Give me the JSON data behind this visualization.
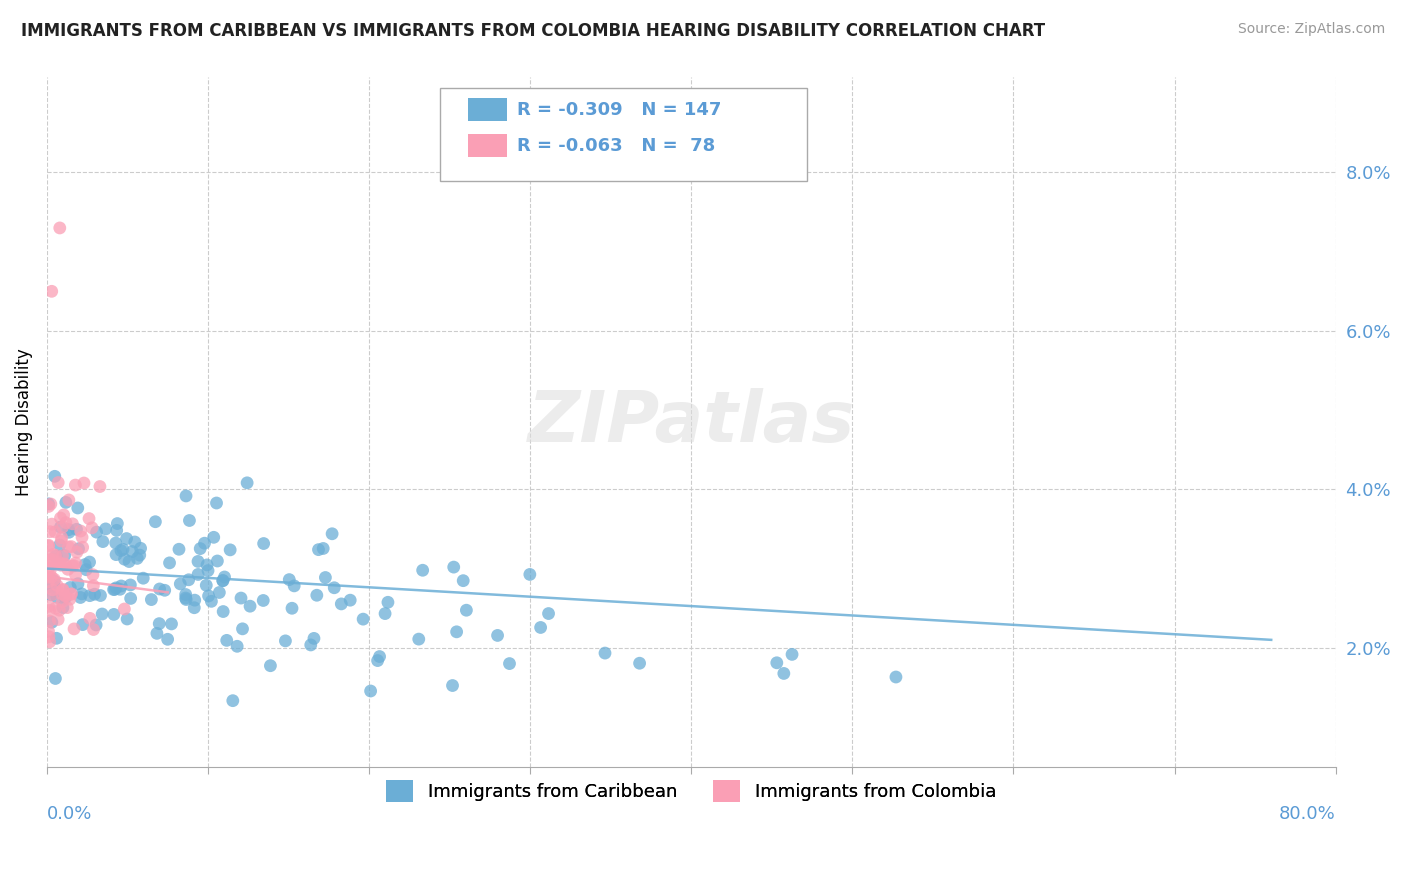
{
  "title": "IMMIGRANTS FROM CARIBBEAN VS IMMIGRANTS FROM COLOMBIA HEARING DISABILITY CORRELATION CHART",
  "source": "Source: ZipAtlas.com",
  "ylabel": "Hearing Disability",
  "y_ticks": [
    "2.0%",
    "4.0%",
    "6.0%",
    "8.0%"
  ],
  "y_tick_vals": [
    0.02,
    0.04,
    0.06,
    0.08
  ],
  "x_lim": [
    0.0,
    0.8
  ],
  "y_lim": [
    0.005,
    0.092
  ],
  "color_caribbean": "#6baed6",
  "color_colombia": "#fa9fb5",
  "title_color": "#222222",
  "axis_color": "#5b9bd5",
  "legend_text_color": "#5b9bd5",
  "watermark_text": "ZIPatlas",
  "legend_r1": "R = -0.309",
  "legend_n1": "N = 147",
  "legend_r2": "R = -0.063",
  "legend_n2": "N =  78",
  "legend_label1": "Immigrants from Caribbean",
  "legend_label2": "Immigrants from Colombia",
  "source_color": "#999999"
}
